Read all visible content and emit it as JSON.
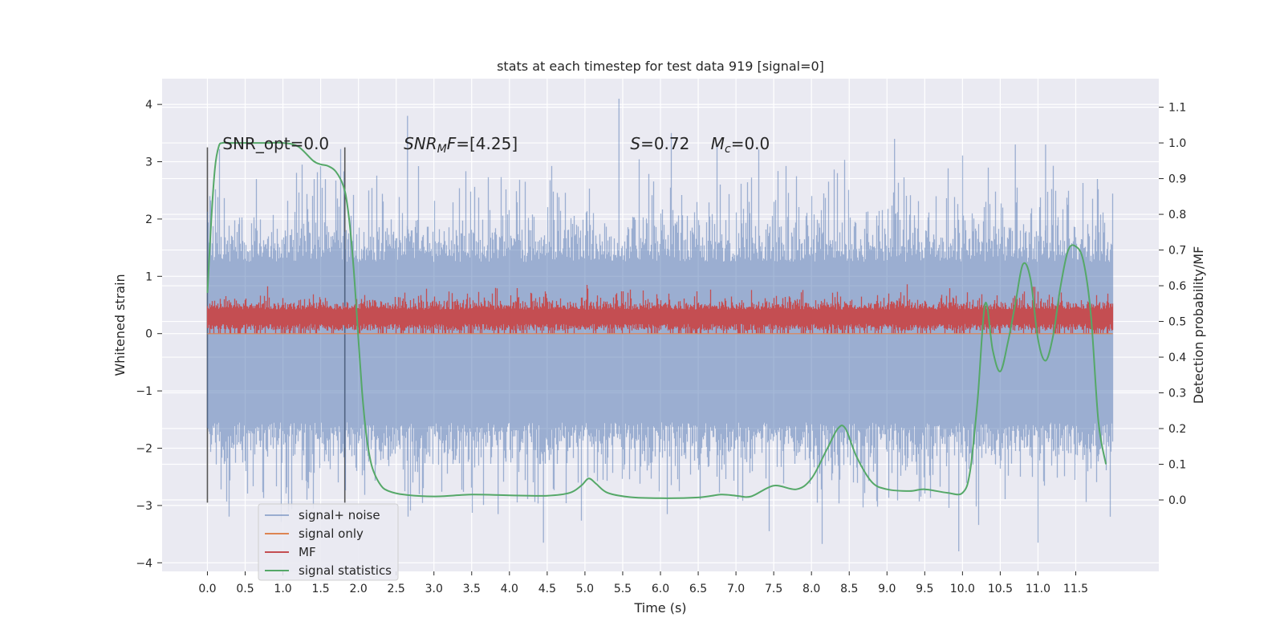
{
  "chart_data": {
    "type": "line",
    "title": "stats at each timestep for test data 919 [signal=0]",
    "xlabel": "Time (s)",
    "ylabel": "Whitened strain",
    "ylabel_right": "Detection probability/MF",
    "xlim": [
      -0.6,
      12.6
    ],
    "ylim": [
      -4.15,
      4.45
    ],
    "ylim_right": [
      -0.2,
      1.18
    ],
    "x_ticks": [
      "0.0",
      "0.5",
      "1.0",
      "1.5",
      "2.0",
      "2.5",
      "3.0",
      "3.5",
      "4.0",
      "4.5",
      "5.0",
      "5.5",
      "6.0",
      "6.5",
      "7.0",
      "7.5",
      "8.0",
      "8.5",
      "9.0",
      "9.5",
      "10.0",
      "10.5",
      "11.0",
      "11.5"
    ],
    "y_ticks": [
      -4,
      -3,
      -2,
      -1,
      0,
      1,
      2,
      3,
      4
    ],
    "y_ticks_right": [
      "0.0",
      "0.1",
      "0.2",
      "0.3",
      "0.4",
      "0.5",
      "0.6",
      "0.7",
      "0.8",
      "0.9",
      "1.0",
      "1.1"
    ],
    "grid": true,
    "legend_position": "lower-left",
    "annotations": [
      {
        "text": "SNR_opt=0.0",
        "x": 0.2,
        "y": 3.3
      },
      {
        "text": "SNR_MF=[4.25]",
        "x": 2.6,
        "y": 3.3
      },
      {
        "text": "S=0.72   M_c=0.0",
        "x": 5.6,
        "y": 3.3
      }
    ],
    "vlines": [
      {
        "x": 0.0,
        "y_range": [
          -2.95,
          3.25
        ]
      },
      {
        "x": 1.82,
        "y_range": [
          -2.95,
          3.25
        ]
      }
    ],
    "series": [
      {
        "name": "signal+ noise",
        "color": "#4c72b0",
        "opacity": 0.5,
        "axis": "left",
        "x_range": [
          0.0,
          11.99
        ],
        "sample_rate_hz": 4096,
        "description_values": {
          "core_band": [
            -1.7,
            1.4
          ],
          "peak_max": 4.1,
          "peak_min": -3.8
        }
      },
      {
        "name": "signal only",
        "color": "#dd8452",
        "axis": "left",
        "values_constant": 0.0
      },
      {
        "name": "MF",
        "color": "#c44e52",
        "axis": "left",
        "x_range": [
          0.0,
          11.99
        ],
        "band": [
          0.0,
          0.55
        ],
        "peak_max": 1.0
      },
      {
        "name": "signal statistics",
        "color": "#55a868",
        "axis": "right",
        "x": [
          0.0,
          0.05,
          0.1,
          0.15,
          0.2,
          0.3,
          0.5,
          0.8,
          1.0,
          1.2,
          1.4,
          1.5,
          1.6,
          1.7,
          1.8,
          1.85,
          1.9,
          1.95,
          2.0,
          2.05,
          2.1,
          2.15,
          2.2,
          2.3,
          2.4,
          2.6,
          3.0,
          3.5,
          4.0,
          4.5,
          4.8,
          4.95,
          5.05,
          5.15,
          5.3,
          5.6,
          6.0,
          6.5,
          6.8,
          7.0,
          7.2,
          7.5,
          7.8,
          8.0,
          8.2,
          8.35,
          8.45,
          8.6,
          8.8,
          9.0,
          9.3,
          9.5,
          9.8,
          10.0,
          10.1,
          10.2,
          10.3,
          10.4,
          10.5,
          10.6,
          10.7,
          10.8,
          10.9,
          11.0,
          11.1,
          11.2,
          11.3,
          11.4,
          11.5,
          11.6,
          11.7,
          11.8,
          11.9
        ],
        "values": [
          0.58,
          0.78,
          0.93,
          0.99,
          1.0,
          1.0,
          1.0,
          1.0,
          1.0,
          0.99,
          0.95,
          0.94,
          0.935,
          0.92,
          0.88,
          0.83,
          0.74,
          0.61,
          0.45,
          0.3,
          0.19,
          0.12,
          0.08,
          0.04,
          0.025,
          0.015,
          0.01,
          0.015,
          0.013,
          0.012,
          0.02,
          0.04,
          0.06,
          0.045,
          0.02,
          0.008,
          0.005,
          0.007,
          0.015,
          0.012,
          0.01,
          0.04,
          0.03,
          0.06,
          0.14,
          0.2,
          0.2,
          0.12,
          0.05,
          0.03,
          0.025,
          0.03,
          0.02,
          0.02,
          0.08,
          0.28,
          0.55,
          0.42,
          0.36,
          0.44,
          0.55,
          0.66,
          0.62,
          0.45,
          0.39,
          0.46,
          0.6,
          0.7,
          0.71,
          0.67,
          0.52,
          0.22,
          0.1
        ]
      }
    ]
  }
}
